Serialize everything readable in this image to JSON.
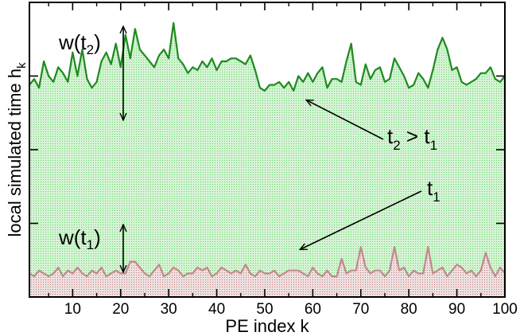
{
  "chart_data": {
    "type": "area",
    "xlabel": "PE index k",
    "ylabel_main": "local simulated time  h",
    "ylabel_sub": "k",
    "xlim": [
      1,
      100
    ],
    "ylim": [
      0,
      1
    ],
    "xticks": [
      10,
      20,
      30,
      40,
      50,
      60,
      70,
      80,
      90,
      100
    ],
    "yticks_unlabeled": [
      0.25,
      0.5,
      0.75
    ],
    "colors": {
      "upper_line": "#1f8a1f",
      "upper_fill": "#c8f0c8",
      "lower_line": "#c08a8a",
      "lower_fill": "#ead6d6",
      "axis": "#000000"
    },
    "series": [
      {
        "name": "t2",
        "values": [
          0.72,
          0.74,
          0.71,
          0.8,
          0.75,
          0.73,
          0.78,
          0.76,
          0.73,
          0.83,
          0.75,
          0.84,
          0.74,
          0.71,
          0.73,
          0.8,
          0.83,
          0.79,
          0.86,
          0.78,
          0.89,
          0.81,
          0.91,
          0.84,
          0.82,
          0.8,
          0.78,
          0.82,
          0.84,
          0.81,
          0.93,
          0.81,
          0.79,
          0.76,
          0.78,
          0.77,
          0.8,
          0.78,
          0.81,
          0.77,
          0.8,
          0.8,
          0.81,
          0.81,
          0.8,
          0.79,
          0.82,
          0.77,
          0.71,
          0.7,
          0.72,
          0.72,
          0.73,
          0.71,
          0.73,
          0.7,
          0.75,
          0.73,
          0.76,
          0.73,
          0.76,
          0.78,
          0.71,
          0.74,
          0.74,
          0.73,
          0.8,
          0.86,
          0.73,
          0.72,
          0.79,
          0.74,
          0.77,
          0.78,
          0.73,
          0.74,
          0.81,
          0.78,
          0.75,
          0.71,
          0.72,
          0.76,
          0.74,
          0.71,
          0.77,
          0.84,
          0.88,
          0.84,
          0.77,
          0.78,
          0.73,
          0.72,
          0.73,
          0.74,
          0.76,
          0.76,
          0.78,
          0.74,
          0.73,
          0.75
        ]
      },
      {
        "name": "t1",
        "values": [
          0.08,
          0.07,
          0.09,
          0.08,
          0.07,
          0.08,
          0.1,
          0.07,
          0.09,
          0.08,
          0.1,
          0.08,
          0.07,
          0.09,
          0.08,
          0.1,
          0.07,
          0.08,
          0.09,
          0.08,
          0.08,
          0.12,
          0.12,
          0.1,
          0.08,
          0.07,
          0.09,
          0.11,
          0.07,
          0.08,
          0.1,
          0.09,
          0.07,
          0.08,
          0.08,
          0.1,
          0.09,
          0.1,
          0.07,
          0.08,
          0.1,
          0.09,
          0.08,
          0.09,
          0.08,
          0.11,
          0.08,
          0.07,
          0.09,
          0.08,
          0.08,
          0.09,
          0.07,
          0.08,
          0.09,
          0.09,
          0.09,
          0.08,
          0.07,
          0.1,
          0.08,
          0.07,
          0.09,
          0.07,
          0.07,
          0.13,
          0.08,
          0.09,
          0.09,
          0.17,
          0.1,
          0.08,
          0.09,
          0.09,
          0.07,
          0.09,
          0.17,
          0.09,
          0.1,
          0.07,
          0.09,
          0.08,
          0.08,
          0.17,
          0.08,
          0.09,
          0.1,
          0.07,
          0.09,
          0.11,
          0.1,
          0.08,
          0.09,
          0.07,
          0.09,
          0.15,
          0.1,
          0.07,
          0.1,
          0.08
        ]
      }
    ],
    "annotations": {
      "w2_label": "w(t",
      "w2_sub": "2",
      "w2_close": ")",
      "w1_label": "w(t",
      "w1_sub": "1",
      "w1_close": ")",
      "cmp_t": "t",
      "cmp_sub2": "2",
      "cmp_mid": " > t",
      "cmp_sub1": "1",
      "t1_t": "t",
      "t1_sub": "1"
    }
  }
}
